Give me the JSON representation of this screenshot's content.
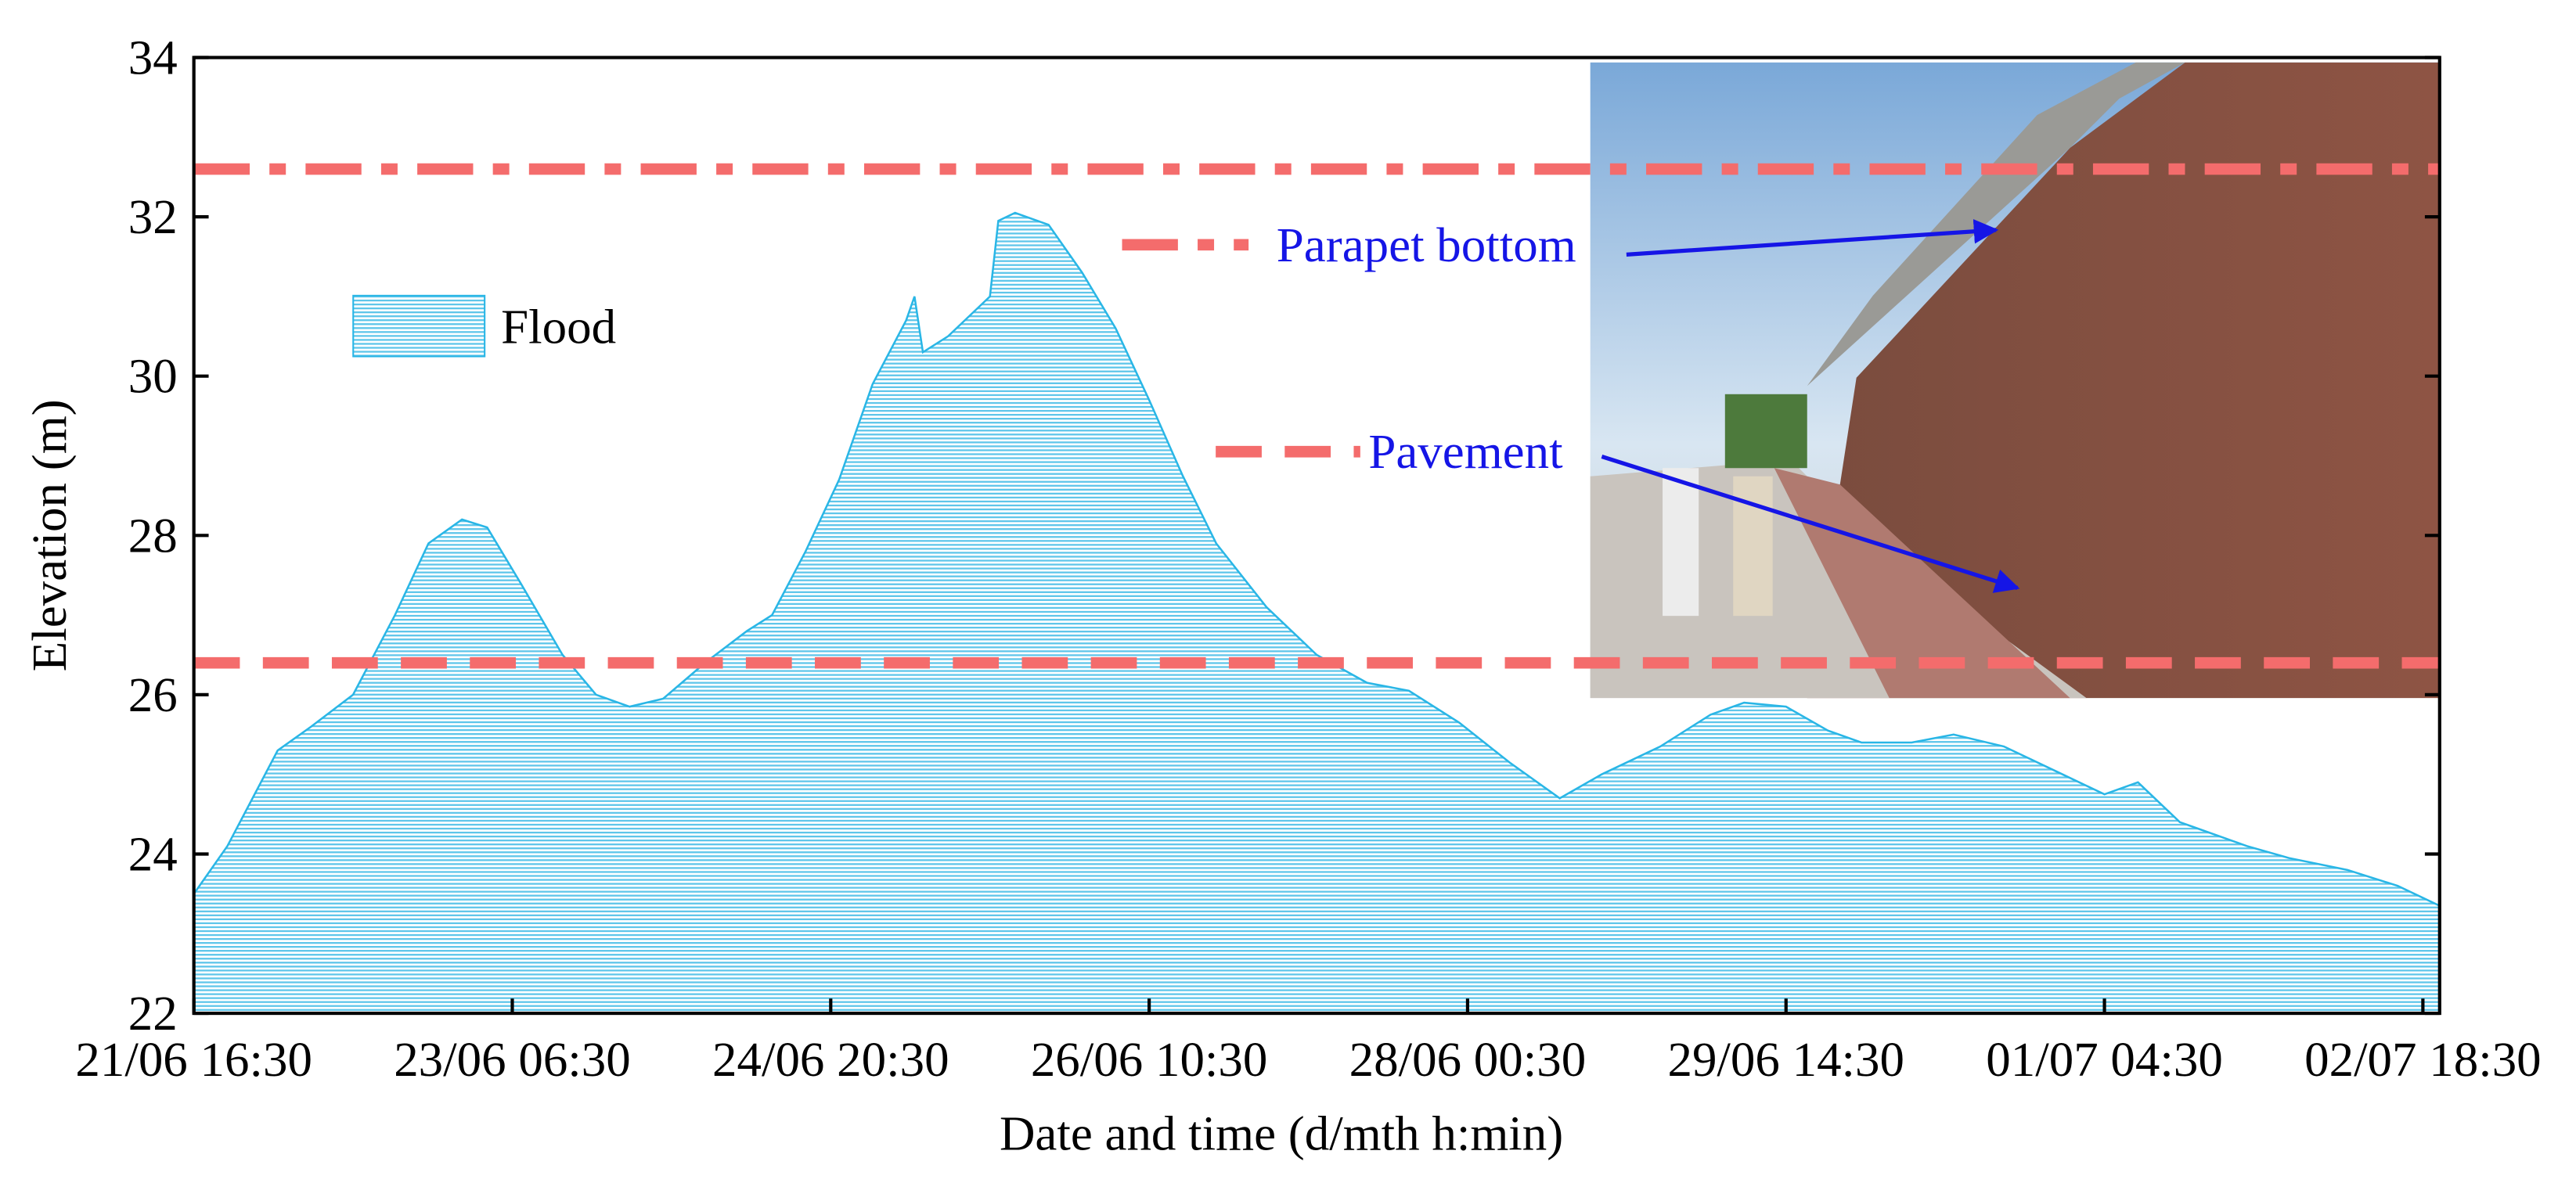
{
  "chart_data": {
    "type": "area",
    "x_label": "Date and time (d/mth h:min)",
    "y_label": "Elevation (m)",
    "x": [
      "21/06 16:30",
      "21/06 20:30",
      "22/06 02:30",
      "22/06 06:30",
      "22/06 11:30",
      "22/06 16:30",
      "22/06 20:30",
      "23/06 00:30",
      "23/06 03:30",
      "23/06 07:30",
      "23/06 12:30",
      "23/06 16:30",
      "23/06 20:30",
      "24/06 00:30",
      "24/06 05:30",
      "24/06 10:30",
      "24/06 13:30",
      "24/06 17:30",
      "24/06 21:30",
      "25/06 01:30",
      "25/06 05:30",
      "25/06 06:30",
      "25/06 07:30",
      "25/06 10:30",
      "25/06 13:30",
      "25/06 15:30",
      "25/06 16:30",
      "25/06 18:30",
      "25/06 22:30",
      "26/06 02:30",
      "26/06 06:30",
      "26/06 10:30",
      "26/06 14:30",
      "26/06 18:30",
      "27/06 00:30",
      "27/06 06:30",
      "27/06 12:30",
      "27/06 17:30",
      "27/06 23:30",
      "28/06 05:30",
      "28/06 11:30",
      "28/06 16:30",
      "28/06 23:30",
      "29/06 05:30",
      "29/06 09:30",
      "29/06 14:30",
      "29/06 19:30",
      "29/06 23:30",
      "30/06 05:30",
      "30/06 10:30",
      "30/06 16:30",
      "30/06 23:30",
      "01/07 04:30",
      "01/07 08:30",
      "01/07 13:30",
      "01/07 21:30",
      "02/07 02:30",
      "02/07 09:30",
      "02/07 15:30",
      "02/07 20:30"
    ],
    "series": [
      {
        "name": "Flood",
        "color": "#29b6e6",
        "values": [
          23.5,
          24.1,
          25.3,
          25.6,
          26.0,
          27.0,
          27.9,
          28.2,
          28.1,
          27.4,
          26.5,
          26.0,
          25.85,
          25.95,
          26.4,
          26.8,
          27.0,
          27.8,
          28.7,
          29.9,
          30.7,
          31.0,
          30.3,
          30.5,
          30.8,
          31.0,
          31.95,
          32.05,
          31.9,
          31.3,
          30.6,
          29.7,
          28.75,
          27.9,
          27.1,
          26.5,
          26.15,
          26.05,
          25.65,
          25.15,
          24.7,
          25.0,
          25.35,
          25.75,
          25.9,
          25.85,
          25.55,
          25.4,
          25.4,
          25.5,
          25.35,
          25.0,
          24.75,
          24.9,
          24.4,
          24.1,
          23.95,
          23.8,
          23.6,
          23.35
        ]
      }
    ],
    "reference_lines": [
      {
        "name": "Parapet bottom",
        "value": 32.6,
        "color": "#f46c6c",
        "dash": "dash-dot"
      },
      {
        "name": "Pavement",
        "value": 26.4,
        "color": "#f46c6c",
        "dash": "dash"
      }
    ],
    "xlim": [
      "21/06 16:30",
      "02/07 20:30"
    ],
    "xticks": [
      "21/06 16:30",
      "23/06 06:30",
      "24/06 20:30",
      "26/06 10:30",
      "28/06 00:30",
      "29/06 14:30",
      "01/07 04:30",
      "02/07 18:30"
    ],
    "ylim": [
      22,
      34
    ],
    "yticks": [
      22,
      24,
      26,
      28,
      30,
      32,
      34
    ]
  }
}
